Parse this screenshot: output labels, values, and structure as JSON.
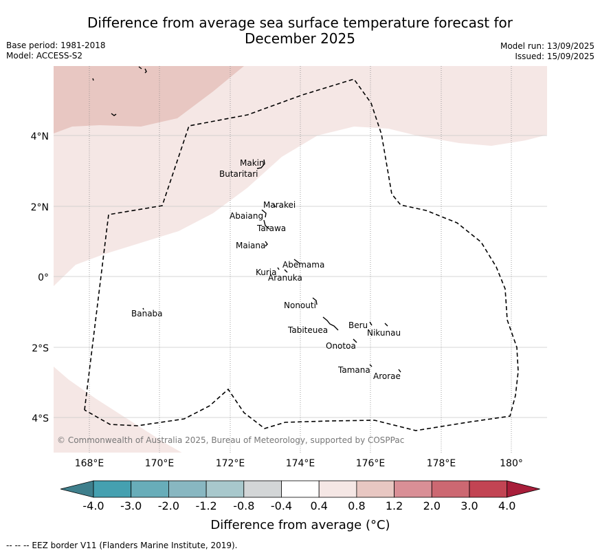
{
  "title": {
    "line1": "Difference from average sea surface temperature forecast for",
    "line2": "December 2025"
  },
  "meta_left": {
    "base_period": "Base period: 1981-2018",
    "model": "Model: ACCESS-S2"
  },
  "meta_right": {
    "model_run": "Model run: 13/09/2025",
    "issued": "Issued: 15/09/2025"
  },
  "map": {
    "lat_ticks": [
      "4°N",
      "2°N",
      "0°",
      "2°S",
      "4°S"
    ],
    "lon_ticks": [
      "168°E",
      "170°E",
      "172°E",
      "174°E",
      "176°E",
      "178°E",
      "180°"
    ],
    "islands": {
      "makin": "Makin",
      "butaritari": "Butaritari",
      "marakei": "Marakei",
      "abaiang": "Abaiang",
      "tarawa": "Tarawa",
      "maiana": "Maiana",
      "abemama": "Abemama",
      "kuria": "Kuria",
      "aranuka": "Aranuka",
      "banaba": "Banaba",
      "nonouti": "Nonouti",
      "beru": "Beru",
      "nikunau": "Nikunau",
      "tabiteuea": "Tabiteuea",
      "onotoa": "Onotoa",
      "tamana": "Tamana",
      "arorae": "Arorae"
    },
    "copyright": "© Commonwealth of Australia 2025, Bureau of Meteorology, supported by COSPPac",
    "colors": {
      "light_warm": "#f5e7e5",
      "mid_warm": "#e8c7c2",
      "eez_line": "#000000",
      "grid": "#c8c8c8"
    }
  },
  "colorbar": {
    "labels": [
      "-4.0",
      "-3.0",
      "-2.0",
      "-1.2",
      "-0.8",
      "-0.4",
      "0.4",
      "0.8",
      "1.2",
      "2.0",
      "3.0",
      "4.0"
    ],
    "colors": [
      "#3f7f8c",
      "#45a0b0",
      "#68adb9",
      "#88b7c1",
      "#a8c8cc",
      "#d3d6d7",
      "#ffffff",
      "#f5e7e5",
      "#e8c7c2",
      "#d98f96",
      "#cc6872",
      "#c24453",
      "#a81e3a"
    ],
    "title": "Difference from average (°C)"
  },
  "footnote": "--  --  -- EEZ border V11 (Flanders Marine Institute, 2019)."
}
